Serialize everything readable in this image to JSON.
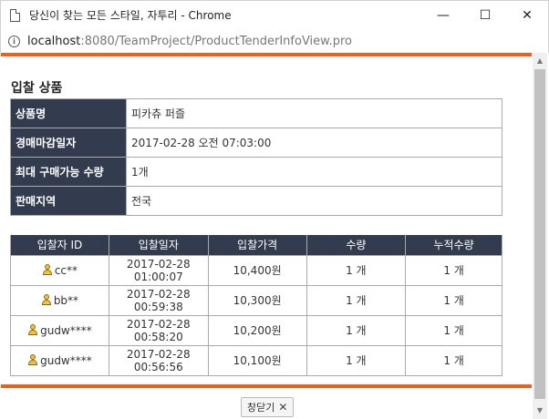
{
  "window": {
    "title": "당신이 찾는 모든 스타일, 자투리 - Chrome",
    "minimize": "—",
    "maximize": "☐",
    "close": "✕"
  },
  "address": {
    "host": "localhost",
    "path": ":8080/TeamProject/ProductTenderInfoView.pro",
    "info_glyph": "i"
  },
  "scrollbar": {
    "up": "▲",
    "down": "▼"
  },
  "section": {
    "title": "입찰 상품"
  },
  "product_info": [
    {
      "label": "상품명",
      "value": "피카츄 퍼즐"
    },
    {
      "label": "경매마감일자",
      "value": "2017-02-28 오전 07:03:00"
    },
    {
      "label": "최대 구매가능 수량",
      "value": "1개"
    },
    {
      "label": "판매지역",
      "value": "전국"
    }
  ],
  "bids": {
    "headers": [
      "입찰자 ID",
      "입찰일자",
      "입찰가격",
      "수량",
      "누적수량"
    ],
    "rows": [
      {
        "bidder": "cc**",
        "date": "2017-02-28",
        "time": "01:00:07",
        "price": "10,400원",
        "qty": "1 개",
        "cum_qty": "1 개"
      },
      {
        "bidder": "bb**",
        "date": "2017-02-28",
        "time": "00:59:38",
        "price": "10,300원",
        "qty": "1 개",
        "cum_qty": "1 개"
      },
      {
        "bidder": "gudw****",
        "date": "2017-02-28",
        "time": "00:58:20",
        "price": "10,200원",
        "qty": "1 개",
        "cum_qty": "1 개"
      },
      {
        "bidder": "gudw****",
        "date": "2017-02-28",
        "time": "00:56:56",
        "price": "10,100원",
        "qty": "1 개",
        "cum_qty": "1 개"
      }
    ]
  },
  "footer": {
    "close_label": "창닫기",
    "close_glyph": "✕"
  },
  "colors": {
    "accent": "#e9611f",
    "header_bg": "#333c4e",
    "icon_person": "#f3c04d"
  }
}
